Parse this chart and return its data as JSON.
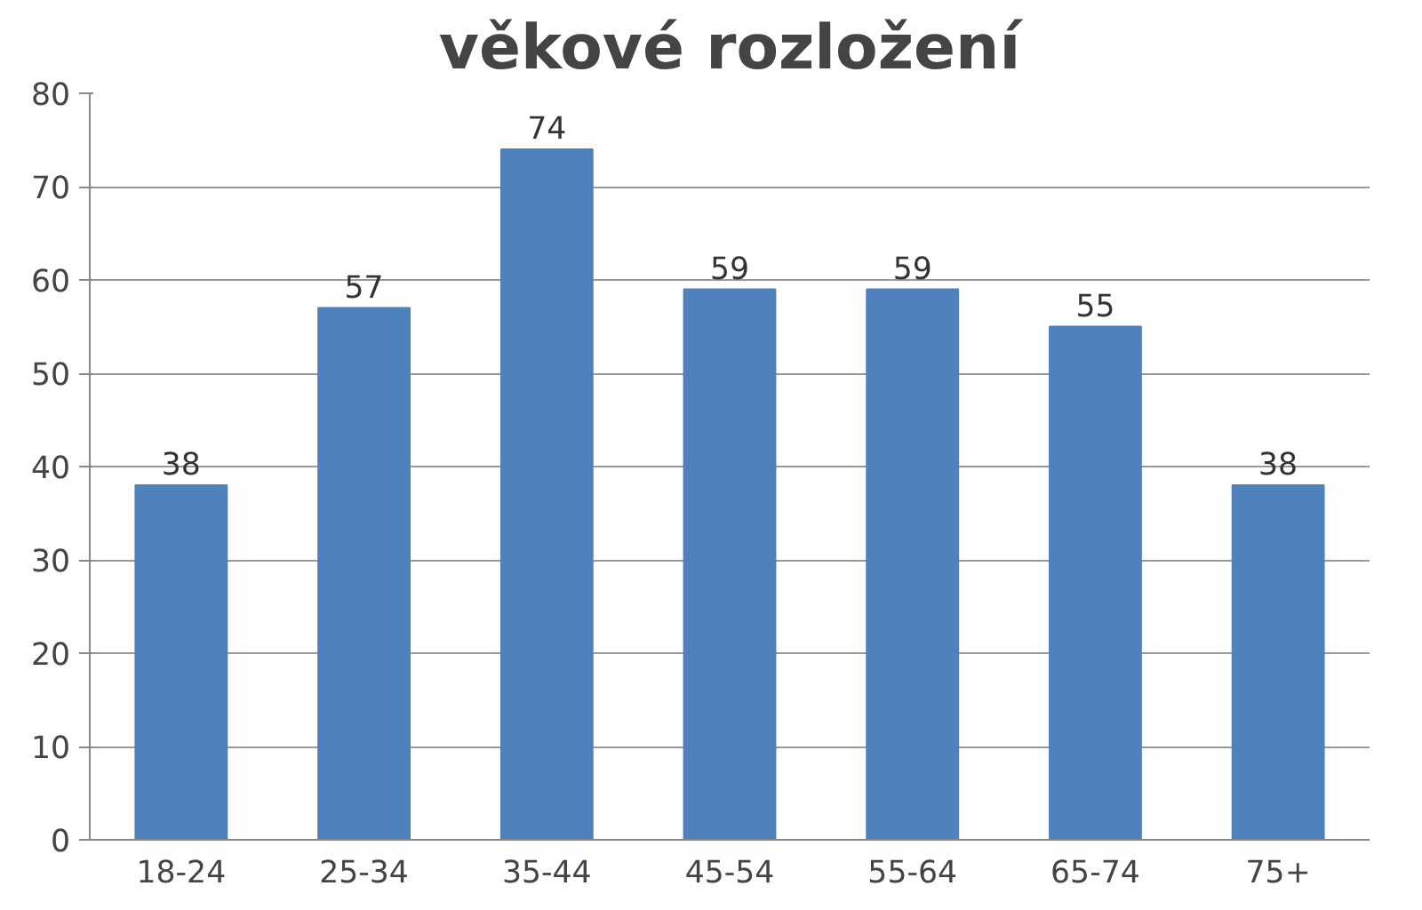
{
  "chart_data": {
    "type": "bar",
    "title": "věkové rozložení",
    "categories": [
      "18-24",
      "25-34",
      "35-44",
      "45-54",
      "55-64",
      "65-74",
      "75+"
    ],
    "values": [
      38,
      57,
      74,
      59,
      59,
      55,
      38
    ],
    "color": "#4f81bd",
    "ylim": [
      0,
      80
    ],
    "yticks": [
      0,
      10,
      20,
      30,
      40,
      50,
      60,
      70,
      80
    ],
    "grid": "y",
    "data_labels": true
  }
}
